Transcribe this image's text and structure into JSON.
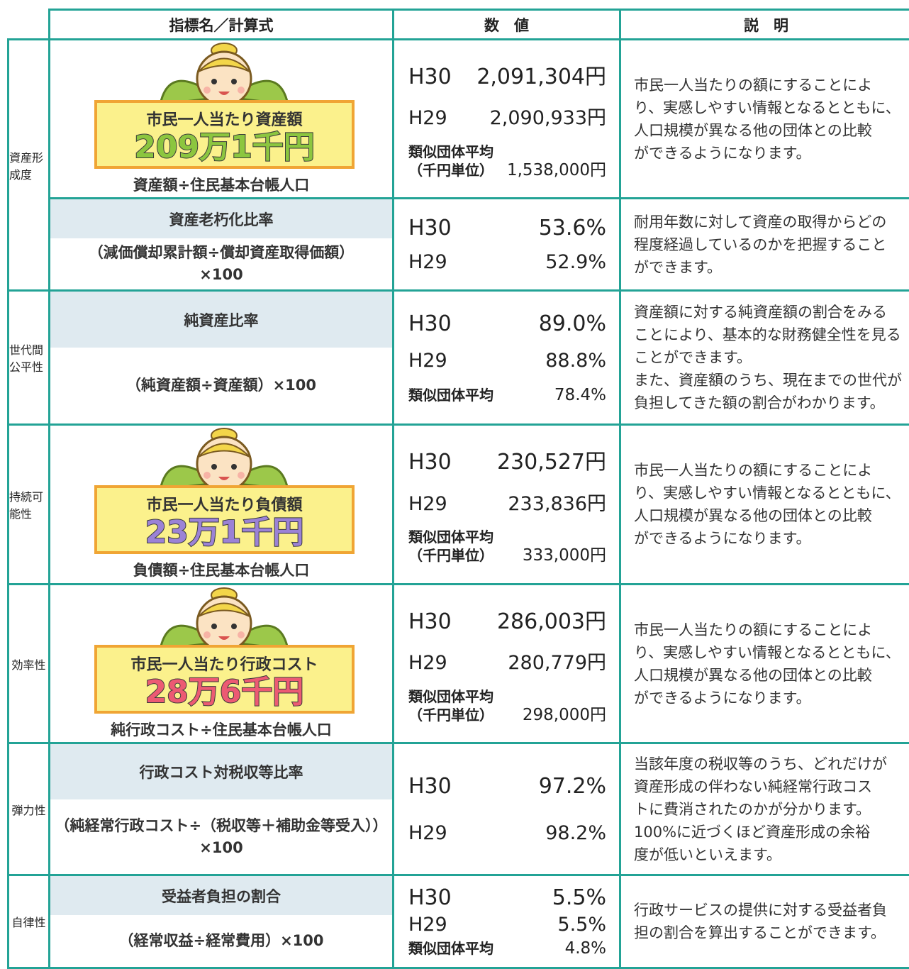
{
  "header": {
    "indicator": "指標名／計算式",
    "value": "数　値",
    "description": "説　明"
  },
  "sections": [
    {
      "category": "資産形成度",
      "rows": [
        {
          "card_title": "市民一人当たり資産額",
          "card_value": "209万1千円",
          "card_color": "#8cc63f",
          "formula": [
            "資産額÷住民基本台帳人口"
          ],
          "values": [
            {
              "label": "H30",
              "value": "2,091,304円"
            },
            {
              "label": "H29",
              "value": "2,090,933円"
            }
          ],
          "similar": {
            "label": "類似団体平均",
            "unit": "（千円単位）",
            "value": "1,538,000円"
          },
          "description": [
            "市民一人当たりの額にすることによ",
            "り、実感しやすい情報となるとともに、",
            "人口規模が異なる他の団体との比較",
            "ができるようになります。"
          ]
        },
        {
          "name": "資産老朽化比率",
          "formula": [
            "（減価償却累計額÷償却資産取得価額）",
            "×100"
          ],
          "values": [
            {
              "label": "H30",
              "value": "53.6%"
            },
            {
              "label": "H29",
              "value": "52.9%"
            }
          ],
          "description": [
            "耐用年数に対して資産の取得からどの",
            "程度経過しているのかを把握すること",
            "ができます。"
          ]
        }
      ]
    },
    {
      "category": "世代間公平性",
      "rows": [
        {
          "name": "純資産比率",
          "formula": [
            "（純資産額÷資産額）×100"
          ],
          "values": [
            {
              "label": "H30",
              "value": "89.0%"
            },
            {
              "label": "H29",
              "value": "88.8%"
            }
          ],
          "similar": {
            "label": "類似団体平均",
            "value": "78.4%"
          },
          "description": [
            "資産額に対する純資産額の割合をみる",
            "ことにより、基本的な財務健全性を見る",
            "ことができます。",
            "また、資産額のうち、現在までの世代が",
            "負担してきた額の割合がわかります。"
          ]
        }
      ]
    },
    {
      "category": "持続可能性",
      "rows": [
        {
          "card_title": "市民一人当たり負債額",
          "card_value": "23万1千円",
          "card_color": "#9b82d6",
          "formula": [
            "負債額÷住民基本台帳人口"
          ],
          "values": [
            {
              "label": "H30",
              "value": "230,527円"
            },
            {
              "label": "H29",
              "value": "233,836円"
            }
          ],
          "similar": {
            "label": "類似団体平均",
            "unit": "（千円単位）",
            "value": "333,000円"
          },
          "description": [
            "市民一人当たりの額にすることによ",
            "り、実感しやすい情報となるとともに、",
            "人口規模が異なる他の団体との比較",
            "ができるようになります。"
          ]
        }
      ]
    },
    {
      "category": "効率性",
      "rows": [
        {
          "card_title": "市民一人当たり行政コスト",
          "card_value": "28万6千円",
          "card_color": "#ec5a73",
          "formula": [
            "純行政コスト÷住民基本台帳人口"
          ],
          "values": [
            {
              "label": "H30",
              "value": "286,003円"
            },
            {
              "label": "H29",
              "value": "280,779円"
            }
          ],
          "similar": {
            "label": "類似団体平均",
            "unit": "（千円単位）",
            "value": "298,000円"
          },
          "description": [
            "市民一人当たりの額にすることによ",
            "り、実感しやすい情報となるとともに、",
            "人口規模が異なる他の団体との比較",
            "ができるようになります。"
          ]
        }
      ]
    },
    {
      "category": "弾力性",
      "rows": [
        {
          "name": "行政コスト対税収等比率",
          "formula": [
            "（純経常行政コスト÷（税収等＋補助金等受入））",
            "×100"
          ],
          "values": [
            {
              "label": "H30",
              "value": "97.2%"
            },
            {
              "label": "H29",
              "value": "98.2%"
            }
          ],
          "description": [
            "当該年度の税収等のうち、どれだけが",
            "資産形成の伴わない純経常行政コス",
            "トに費消されたのかが分かります。",
            "100%に近づくほど資産形成の余裕",
            "度が低いといえます。"
          ]
        }
      ]
    },
    {
      "category": "自律性",
      "rows": [
        {
          "name": "受益者負担の割合",
          "formula": [
            "（経常収益÷経常費用）×100"
          ],
          "values": [
            {
              "label": "H30",
              "value": "5.5%"
            },
            {
              "label": "H29",
              "value": "5.5%"
            }
          ],
          "similar": {
            "label": "類似団体平均",
            "value": "4.8%"
          },
          "description": [
            "行政サービスの提供に対する受益者負",
            "担の割合を算出することができます。"
          ]
        }
      ]
    }
  ]
}
